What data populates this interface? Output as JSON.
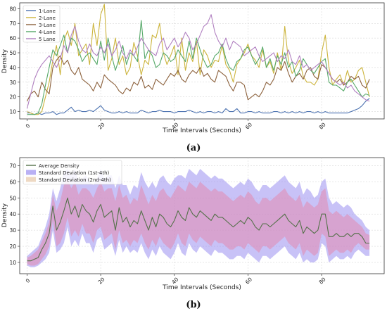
{
  "chart_data": [
    {
      "panel": "(a)",
      "type": "line",
      "xlabel": "Time Intervals (Seconds)",
      "ylabel": "Density",
      "xlim": [
        -2,
        97
      ],
      "ylim": [
        5,
        84
      ],
      "xticks": [
        0,
        20,
        40,
        60,
        80
      ],
      "yticks": [
        10,
        20,
        30,
        40,
        50,
        60,
        70,
        80
      ],
      "grid": true,
      "legend_position": "top-left",
      "x": [
        0,
        1,
        2,
        3,
        4,
        5,
        6,
        7,
        8,
        9,
        10,
        11,
        12,
        13,
        14,
        15,
        16,
        17,
        18,
        19,
        20,
        21,
        22,
        23,
        24,
        25,
        26,
        27,
        28,
        29,
        30,
        31,
        32,
        33,
        34,
        35,
        36,
        37,
        38,
        39,
        40,
        41,
        42,
        43,
        44,
        45,
        46,
        47,
        48,
        49,
        50,
        51,
        52,
        53,
        54,
        55,
        56,
        57,
        58,
        59,
        60,
        61,
        62,
        63,
        64,
        65,
        66,
        67,
        68,
        69,
        70,
        71,
        72,
        73,
        74,
        75,
        76,
        77,
        78,
        79,
        80,
        81,
        82,
        83,
        84,
        85,
        86,
        87,
        88,
        89,
        90,
        91,
        92,
        93
      ],
      "series": [
        {
          "name": "1-Lane",
          "color": "#4c72b0",
          "values": [
            9,
            9,
            8,
            9,
            8,
            9,
            9,
            10,
            8,
            9,
            9,
            11,
            13,
            10,
            11,
            10,
            10,
            11,
            10,
            12,
            14,
            11,
            10,
            9,
            9,
            10,
            9,
            10,
            9,
            9,
            9,
            11,
            10,
            9,
            10,
            10,
            11,
            10,
            10,
            10,
            9,
            10,
            10,
            10,
            11,
            10,
            9,
            10,
            9,
            10,
            10,
            9,
            10,
            9,
            12,
            10,
            10,
            12,
            9,
            9,
            10,
            10,
            9,
            10,
            9,
            9,
            9,
            10,
            10,
            9,
            10,
            9,
            10,
            9,
            10,
            9,
            10,
            10,
            9,
            10,
            9,
            10,
            9,
            9,
            9,
            9,
            9,
            9,
            10,
            11,
            12,
            14,
            17,
            19
          ]
        },
        {
          "name": "2-Lane",
          "color": "#ccb43c",
          "values": [
            10,
            9,
            8,
            8,
            10,
            20,
            30,
            45,
            55,
            35,
            58,
            65,
            55,
            70,
            48,
            52,
            56,
            42,
            70,
            55,
            76,
            83,
            38,
            46,
            60,
            42,
            48,
            35,
            40,
            57,
            48,
            35,
            45,
            42,
            62,
            60,
            70,
            50,
            42,
            48,
            55,
            35,
            60,
            38,
            50,
            44,
            58,
            35,
            52,
            48,
            40,
            45,
            44,
            55,
            42,
            38,
            30,
            42,
            46,
            50,
            56,
            48,
            45,
            40,
            52,
            40,
            44,
            36,
            50,
            38,
            68,
            44,
            36,
            40,
            45,
            34,
            30,
            30,
            28,
            32,
            50,
            62,
            40,
            28,
            32,
            35,
            28,
            38,
            30,
            32,
            38,
            40,
            30,
            20
          ]
        },
        {
          "name": "3-Lane",
          "color": "#8c613c",
          "values": [
            17,
            22,
            24,
            20,
            30,
            25,
            22,
            40,
            45,
            48,
            42,
            45,
            38,
            35,
            40,
            32,
            30,
            28,
            24,
            30,
            26,
            35,
            32,
            30,
            28,
            24,
            22,
            26,
            24,
            30,
            28,
            34,
            26,
            28,
            25,
            32,
            30,
            28,
            32,
            36,
            34,
            38,
            32,
            30,
            35,
            38,
            36,
            40,
            34,
            36,
            32,
            30,
            38,
            36,
            34,
            28,
            24,
            30,
            30,
            28,
            18,
            20,
            22,
            20,
            24,
            30,
            28,
            32,
            40,
            38,
            44,
            36,
            30,
            34,
            36,
            32,
            38,
            40,
            34,
            32,
            42,
            40,
            36,
            32,
            30,
            32,
            28,
            30,
            34,
            32,
            34,
            28,
            26,
            32
          ]
        },
        {
          "name": "4-Lane",
          "color": "#55a868",
          "values": [
            8,
            8,
            8,
            9,
            15,
            28,
            40,
            52,
            48,
            55,
            62,
            50,
            60,
            58,
            52,
            44,
            48,
            50,
            46,
            42,
            58,
            45,
            60,
            48,
            38,
            46,
            55,
            42,
            50,
            48,
            44,
            72,
            46,
            52,
            48,
            40,
            42,
            50,
            48,
            44,
            46,
            52,
            48,
            44,
            58,
            46,
            60,
            52,
            45,
            40,
            42,
            48,
            50,
            56,
            46,
            40,
            38,
            44,
            46,
            52,
            54,
            48,
            42,
            46,
            54,
            40,
            46,
            38,
            48,
            42,
            50,
            40,
            44,
            34,
            38,
            46,
            42,
            38,
            36,
            40,
            44,
            46,
            30,
            28,
            28,
            26,
            24,
            30,
            32,
            28,
            24,
            20,
            22,
            21
          ]
        },
        {
          "name": "5 Lane",
          "color": "#b07fc0",
          "values": [
            12,
            22,
            32,
            38,
            42,
            45,
            48,
            44,
            40,
            46,
            55,
            50,
            62,
            68,
            58,
            52,
            50,
            56,
            50,
            48,
            54,
            50,
            56,
            48,
            52,
            58,
            50,
            46,
            52,
            48,
            54,
            60,
            56,
            52,
            50,
            48,
            56,
            60,
            52,
            56,
            60,
            54,
            58,
            64,
            60,
            52,
            56,
            62,
            68,
            70,
            76,
            64,
            58,
            54,
            60,
            52,
            58,
            56,
            54,
            48,
            50,
            52,
            54,
            48,
            44,
            46,
            48,
            50,
            44,
            48,
            46,
            52,
            44,
            42,
            48,
            40,
            42,
            38,
            40,
            42,
            44,
            40,
            36,
            32,
            30,
            28,
            30,
            26,
            28,
            24,
            22,
            20,
            18,
            17
          ]
        }
      ]
    },
    {
      "panel": "(b)",
      "type": "line",
      "xlabel": "Time Intervals (Seconds)",
      "ylabel": "Density",
      "xlim": [
        -2,
        97
      ],
      "ylim": [
        3,
        75
      ],
      "xticks": [
        0,
        20,
        40,
        60,
        80
      ],
      "yticks": [
        10,
        20,
        30,
        40,
        50,
        60,
        70
      ],
      "grid": true,
      "legend_position": "top-left",
      "x": [
        0,
        1,
        2,
        3,
        4,
        5,
        6,
        7,
        8,
        9,
        10,
        11,
        12,
        13,
        14,
        15,
        16,
        17,
        18,
        19,
        20,
        21,
        22,
        23,
        24,
        25,
        26,
        27,
        28,
        29,
        30,
        31,
        32,
        33,
        34,
        35,
        36,
        37,
        38,
        39,
        40,
        41,
        42,
        43,
        44,
        45,
        46,
        47,
        48,
        49,
        50,
        51,
        52,
        53,
        54,
        55,
        56,
        57,
        58,
        59,
        60,
        61,
        62,
        63,
        64,
        65,
        66,
        67,
        68,
        69,
        70,
        71,
        72,
        73,
        74,
        75,
        76,
        77,
        78,
        79,
        80,
        81,
        82,
        83,
        84,
        85,
        86,
        87,
        88,
        89,
        90,
        91,
        92,
        93
      ],
      "series": [
        {
          "name": "Average Density",
          "color": "#55714a",
          "values": [
            11,
            11,
            12,
            13,
            18,
            22,
            28,
            45,
            30,
            35,
            42,
            50,
            40,
            45,
            38,
            46,
            42,
            40,
            35,
            42,
            46,
            38,
            40,
            42,
            30,
            44,
            35,
            38,
            32,
            36,
            34,
            42,
            36,
            30,
            38,
            32,
            40,
            38,
            34,
            32,
            36,
            42,
            38,
            36,
            44,
            40,
            38,
            42,
            40,
            38,
            36,
            40,
            38,
            38,
            36,
            34,
            32,
            34,
            36,
            34,
            38,
            36,
            32,
            30,
            34,
            34,
            32,
            34,
            36,
            38,
            40,
            36,
            34,
            32,
            36,
            28,
            32,
            30,
            28,
            30,
            40,
            40,
            26,
            26,
            28,
            26,
            26,
            28,
            26,
            28,
            28,
            26,
            22,
            22
          ]
        },
        {
          "name": "Standard Deviation (1st-4th)",
          "color": "#9b8ff0",
          "band": true,
          "upper": [
            14,
            16,
            18,
            20,
            26,
            32,
            40,
            56,
            48,
            56,
            66,
            68,
            64,
            68,
            60,
            62,
            64,
            60,
            58,
            62,
            68,
            62,
            64,
            64,
            56,
            64,
            58,
            58,
            52,
            58,
            56,
            66,
            60,
            56,
            60,
            56,
            62,
            64,
            60,
            58,
            62,
            64,
            64,
            62,
            68,
            66,
            64,
            68,
            66,
            64,
            62,
            64,
            62,
            62,
            60,
            58,
            56,
            58,
            60,
            58,
            62,
            60,
            56,
            54,
            58,
            58,
            56,
            58,
            60,
            62,
            64,
            60,
            58,
            56,
            60,
            52,
            56,
            54,
            50,
            52,
            60,
            62,
            50,
            46,
            48,
            46,
            44,
            46,
            44,
            40,
            38,
            36,
            32,
            30
          ],
          "lower": [
            8,
            7,
            7,
            8,
            10,
            12,
            16,
            30,
            16,
            18,
            22,
            32,
            20,
            24,
            20,
            28,
            22,
            22,
            16,
            24,
            26,
            18,
            20,
            22,
            14,
            24,
            16,
            20,
            16,
            18,
            16,
            22,
            16,
            12,
            18,
            14,
            20,
            16,
            14,
            12,
            16,
            22,
            16,
            14,
            22,
            18,
            16,
            20,
            18,
            16,
            14,
            18,
            16,
            16,
            14,
            12,
            12,
            14,
            14,
            12,
            16,
            14,
            12,
            10,
            14,
            14,
            12,
            14,
            16,
            18,
            20,
            16,
            14,
            12,
            16,
            10,
            12,
            10,
            10,
            12,
            22,
            20,
            10,
            12,
            14,
            12,
            12,
            14,
            12,
            16,
            18,
            16,
            14,
            14
          ]
        },
        {
          "name": "Standard Deviation (2nd-4th)",
          "color": "#e7c9a9",
          "band": true,
          "upper": [
            13,
            14,
            16,
            18,
            23,
            28,
            35,
            52,
            42,
            48,
            58,
            62,
            56,
            60,
            52,
            56,
            56,
            54,
            50,
            56,
            60,
            54,
            56,
            56,
            48,
            58,
            50,
            52,
            46,
            50,
            48,
            58,
            52,
            46,
            52,
            48,
            54,
            56,
            52,
            50,
            54,
            58,
            56,
            54,
            60,
            58,
            56,
            60,
            58,
            56,
            54,
            56,
            54,
            54,
            52,
            50,
            48,
            50,
            52,
            50,
            54,
            52,
            48,
            46,
            50,
            50,
            48,
            50,
            52,
            54,
            56,
            52,
            50,
            48,
            52,
            44,
            48,
            46,
            44,
            46,
            54,
            56,
            42,
            40,
            42,
            40,
            38,
            40,
            38,
            36,
            34,
            32,
            28,
            27
          ],
          "lower": [
            9,
            8,
            8,
            9,
            12,
            15,
            20,
            36,
            20,
            22,
            28,
            38,
            26,
            30,
            26,
            34,
            28,
            28,
            22,
            30,
            32,
            24,
            26,
            28,
            18,
            30,
            22,
            24,
            20,
            24,
            22,
            28,
            22,
            18,
            24,
            20,
            26,
            22,
            20,
            18,
            22,
            28,
            22,
            20,
            28,
            24,
            22,
            26,
            24,
            22,
            20,
            24,
            22,
            22,
            20,
            18,
            18,
            20,
            20,
            18,
            22,
            20,
            18,
            16,
            20,
            20,
            18,
            20,
            22,
            24,
            26,
            22,
            20,
            18,
            22,
            14,
            18,
            16,
            14,
            16,
            28,
            26,
            14,
            16,
            18,
            16,
            16,
            18,
            16,
            20,
            22,
            20,
            18,
            18
          ]
        }
      ]
    }
  ],
  "captions": {
    "a": "(a)",
    "b": "(b)"
  }
}
